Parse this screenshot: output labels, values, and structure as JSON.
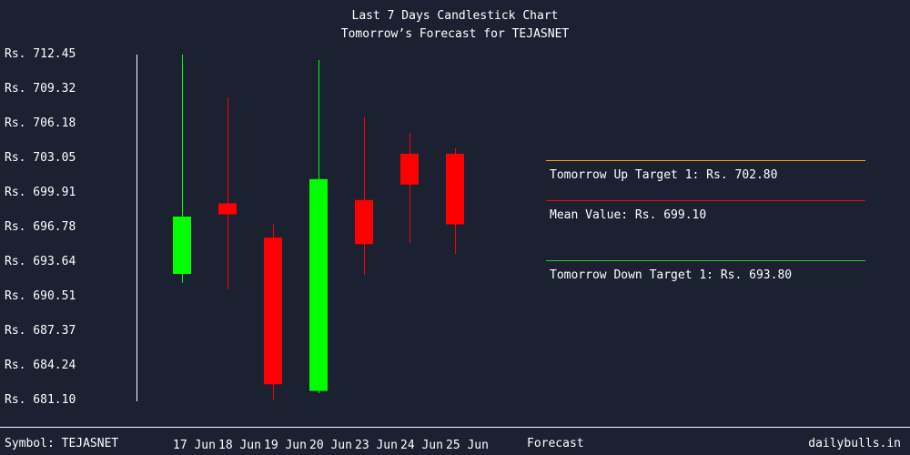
{
  "title": "Last 7 Days Candlestick Chart",
  "subtitle": "Tomorrow’s Forecast for TEJASNET",
  "footer": {
    "symbol": "Symbol: TEJASNET",
    "site": "dailybulls.in",
    "forecast_label": "Forecast"
  },
  "colors": {
    "background": "#1b2130",
    "up": "#00ff00",
    "down": "#ff0000",
    "text": "#ffffff",
    "up_target_line": "#ffa500",
    "mean_line": "#ff0000",
    "down_target_line": "#22cc22"
  },
  "targets": {
    "up": "Tomorrow Up Target 1: Rs. 702.80",
    "mean": "Mean Value: Rs. 699.10",
    "down": "Tomorrow Down Target 1: Rs. 693.80"
  },
  "chart_data": {
    "type": "candlestick",
    "title": "Last 7 Days Candlestick Chart",
    "subtitle": "Tomorrow’s Forecast for TEJASNET",
    "y_ticks": [
      "Rs. 712.45",
      "Rs. 709.32",
      "Rs. 706.18",
      "Rs. 703.05",
      "Rs. 699.91",
      "Rs. 696.78",
      "Rs. 693.64",
      "Rs. 690.51",
      "Rs. 687.37",
      "Rs. 684.24",
      "Rs. 681.10"
    ],
    "ylim": [
      681.1,
      712.45
    ],
    "categories": [
      "17 Jun",
      "18 Jun",
      "19 Jun",
      "20 Jun",
      "23 Jun",
      "24 Jun",
      "25 Jun"
    ],
    "candles": [
      {
        "date": "17 Jun",
        "open": 692.4,
        "close": 697.6,
        "high": 712.3,
        "low": 691.6
      },
      {
        "date": "18 Jun",
        "open": 698.8,
        "close": 697.8,
        "high": 708.4,
        "low": 691.0
      },
      {
        "date": "19 Jun",
        "open": 695.7,
        "close": 682.4,
        "high": 696.9,
        "low": 681.0
      },
      {
        "date": "20 Jun",
        "open": 681.8,
        "close": 701.0,
        "high": 711.8,
        "low": 681.6
      },
      {
        "date": "23 Jun",
        "open": 699.1,
        "close": 695.1,
        "high": 706.6,
        "low": 692.3
      },
      {
        "date": "24 Jun",
        "open": 703.3,
        "close": 700.5,
        "high": 705.2,
        "low": 695.2
      },
      {
        "date": "25 Jun",
        "open": 703.3,
        "close": 696.9,
        "high": 703.8,
        "low": 694.2
      }
    ],
    "forecast": {
      "up_target": 702.8,
      "mean": 699.1,
      "down_target": 693.8
    }
  }
}
